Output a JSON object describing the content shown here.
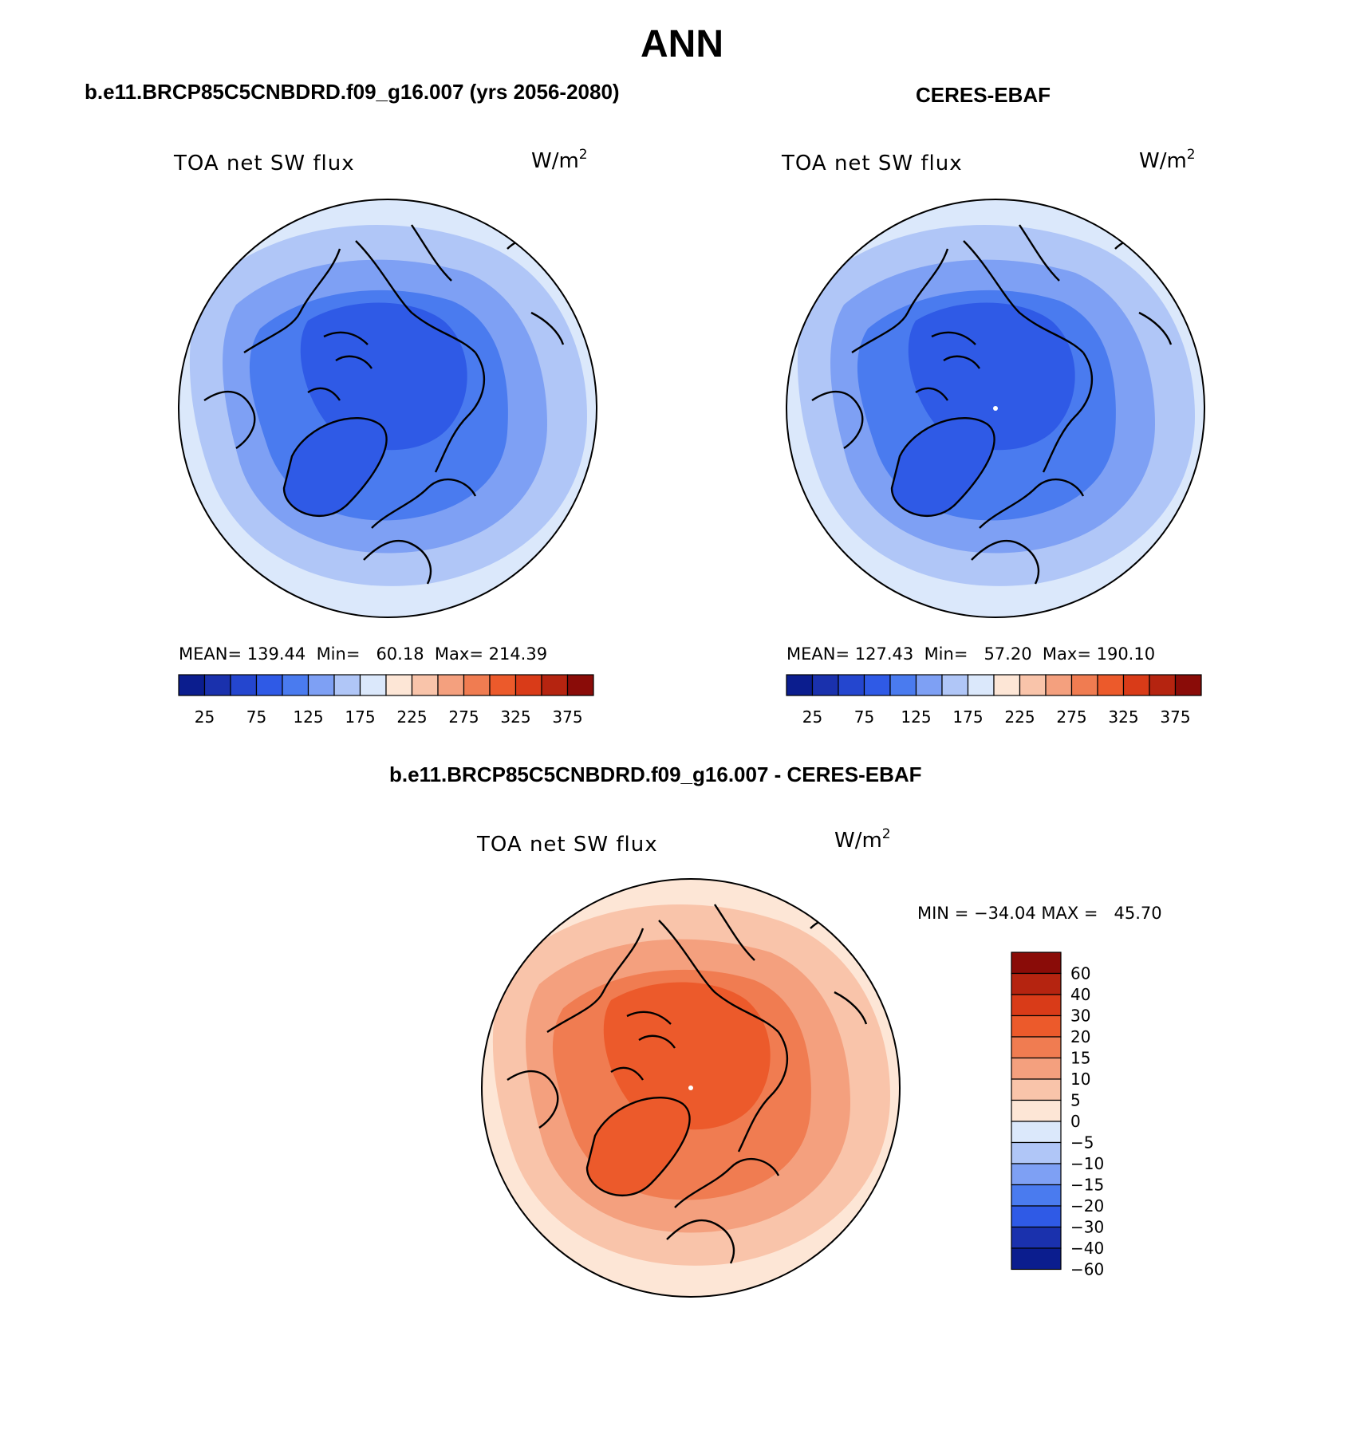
{
  "title": "ANN",
  "panels": [
    {
      "id": "model",
      "header": "b.e11.BRCP85C5CNBDRD.f09_g16.007 (yrs 2056-2080)",
      "field_label": "TOA net SW flux",
      "units_base": "W/m",
      "units_exp": "2",
      "stats_text": "MEAN= 139.44  Min=   60.18  Max= 214.39",
      "colors": [
        "#0b1d8e",
        "#1a31ad",
        "#2446cf",
        "#2f5ae6",
        "#4a7bef",
        "#7ea0f4",
        "#b0c6f7",
        "#dbe8fb",
        "#fde6d6",
        "#f9c4aa",
        "#f4a07e",
        "#f07c51",
        "#ec5a2b",
        "#d93b18",
        "#b52410",
        "#8a0c08"
      ],
      "fill_colors": [
        "#dbe8fb",
        "#b0c6f7",
        "#7ea0f4",
        "#4a7bef",
        "#2f5ae6"
      ]
    },
    {
      "id": "obs",
      "header": "CERES-EBAF",
      "field_label": "TOA net SW flux",
      "units_base": "W/m",
      "units_exp": "2",
      "stats_text": "MEAN= 127.43  Min=   57.20  Max= 190.10",
      "colors": [
        "#0b1d8e",
        "#1a31ad",
        "#2446cf",
        "#2f5ae6",
        "#4a7bef",
        "#7ea0f4",
        "#b0c6f7",
        "#dbe8fb",
        "#fde6d6",
        "#f9c4aa",
        "#f4a07e",
        "#f07c51",
        "#ec5a2b",
        "#d93b18",
        "#b52410",
        "#8a0c08"
      ],
      "fill_colors": [
        "#dbe8fb",
        "#b0c6f7",
        "#7ea0f4",
        "#4a7bef",
        "#2f5ae6"
      ]
    }
  ],
  "horizontal_colorbar_labels": [
    "25",
    "75",
    "125",
    "175",
    "225",
    "275",
    "325",
    "375"
  ],
  "diff_panel": {
    "header": "b.e11.BRCP85C5CNBDRD.f09_g16.007 - CERES-EBAF",
    "field_label": "TOA net SW flux",
    "units_base": "W/m",
    "units_exp": "2",
    "minmax_text": "MIN = −34.04 MAX =   45.70",
    "colorbar_labels": [
      "60",
      "40",
      "30",
      "20",
      "15",
      "10",
      "5",
      "0",
      "−5",
      "−10",
      "−15",
      "−20",
      "−30",
      "−40",
      "−60"
    ],
    "colorbar_colors": [
      "#8a0c08",
      "#b52410",
      "#d93b18",
      "#ec5a2b",
      "#f07c51",
      "#f4a07e",
      "#f9c4aa",
      "#fde6d6",
      "#dbe8fb",
      "#b0c6f7",
      "#7ea0f4",
      "#4a7bef",
      "#2f5ae6",
      "#1a31ad",
      "#0b1d8e"
    ],
    "fill_colors": [
      "#fde6d6",
      "#f9c4aa",
      "#f4a07e",
      "#f07c51",
      "#ec5a2b"
    ]
  }
}
